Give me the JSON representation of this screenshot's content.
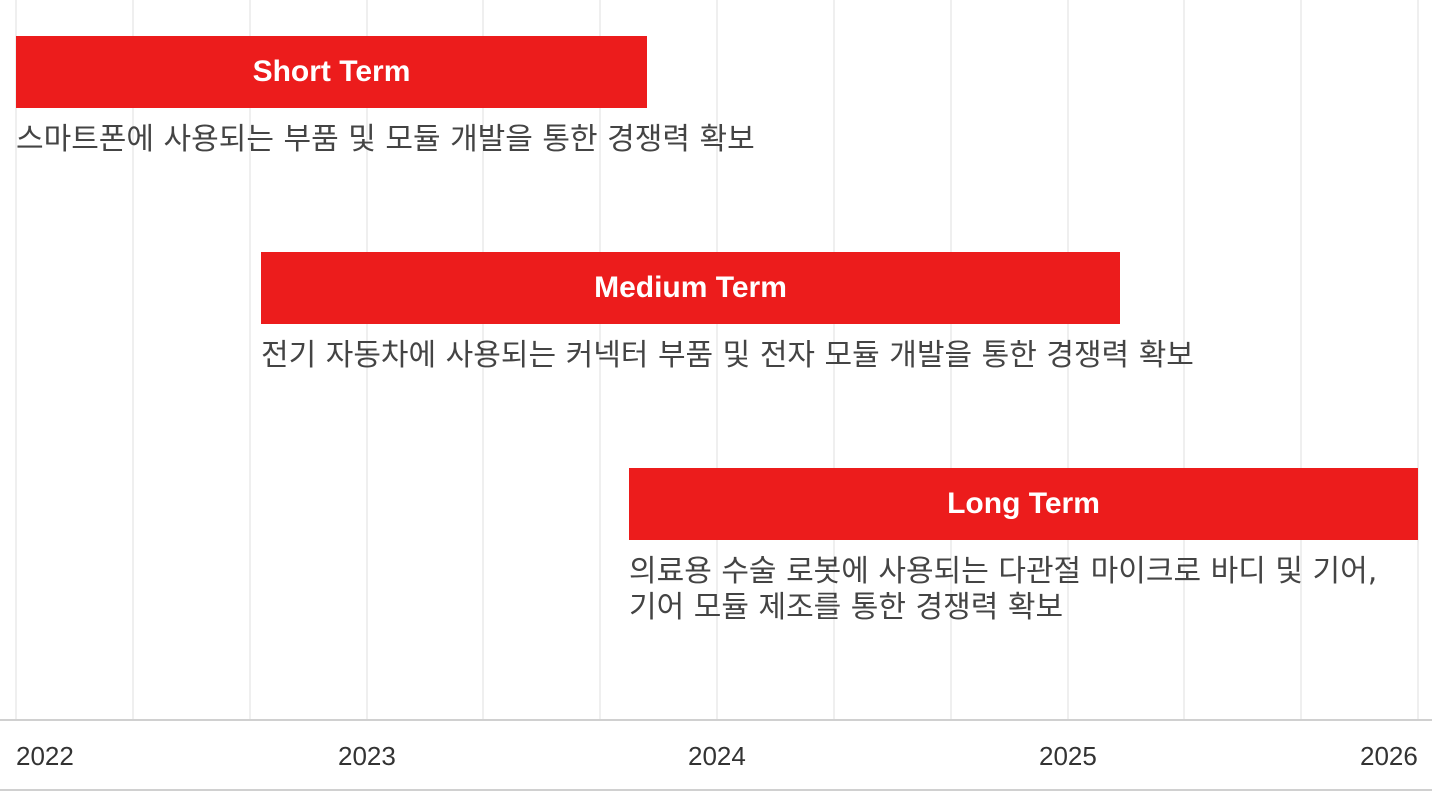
{
  "chart_data": {
    "type": "gantt",
    "x_axis": {
      "ticks": [
        "2022",
        "2023",
        "2024",
        "2025",
        "2026"
      ],
      "range": [
        2022.0,
        2026.0
      ]
    },
    "colors": {
      "bar": "#ec1c1c",
      "bar_text": "#ffffff",
      "description": "#444444",
      "grid": "#efefef"
    },
    "tasks": [
      {
        "label": "Short Term",
        "start": 2022.0,
        "end": 2023.8,
        "description": [
          "스마트폰에 사용되는 부품 및 모듈 개발을 통한 경쟁력 확보"
        ]
      },
      {
        "label": "Medium Term",
        "start": 2022.7,
        "end": 2025.15,
        "description": [
          "전기 자동차에 사용되는 커넥터 부품 및 전자 모듈 개발을 통한 경쟁력 확보"
        ]
      },
      {
        "label": "Long Term",
        "start": 2023.75,
        "end": 2026.0,
        "description": [
          "의료용 수술 로봇에 사용되는 다관절 마이크로 바디 및 기어,",
          "기어 모듈 제조를 통한 경쟁력 확보"
        ]
      }
    ]
  }
}
